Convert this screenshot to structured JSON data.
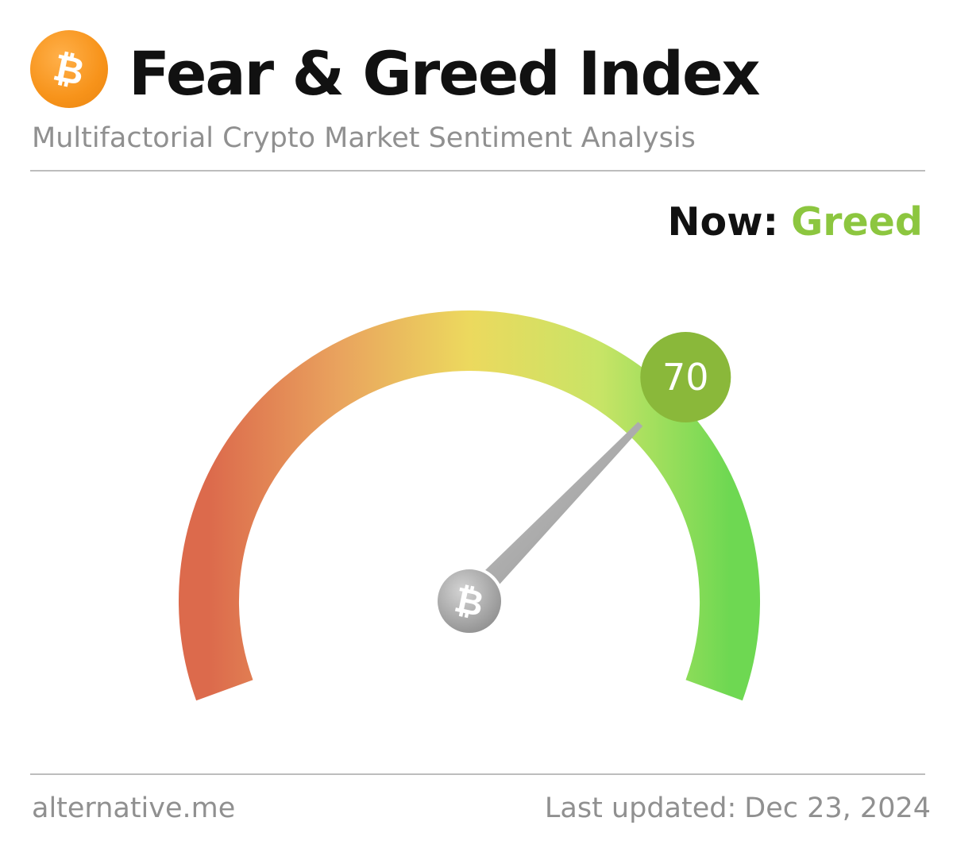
{
  "header": {
    "title": "Fear & Greed Index",
    "subtitle": "Multifactorial Crypto Market Sentiment Analysis",
    "logo_icon": "bitcoin-icon",
    "logo_color": "#f7931a"
  },
  "status": {
    "now_label": "Now:",
    "now_value": "Greed",
    "now_color": "#8cc63f"
  },
  "gauge": {
    "value": 70,
    "min": 0,
    "max": 100,
    "value_label": "70",
    "badge_color": "#8ab83a",
    "needle_hub_icon": "bitcoin-icon",
    "colors": {
      "fear": "#dc6a4c",
      "neutral": "#ecd95e",
      "greed": "#6ed852"
    }
  },
  "footer": {
    "source": "alternative.me",
    "updated_label": "Last updated:",
    "updated_date": "Dec 23, 2024"
  }
}
